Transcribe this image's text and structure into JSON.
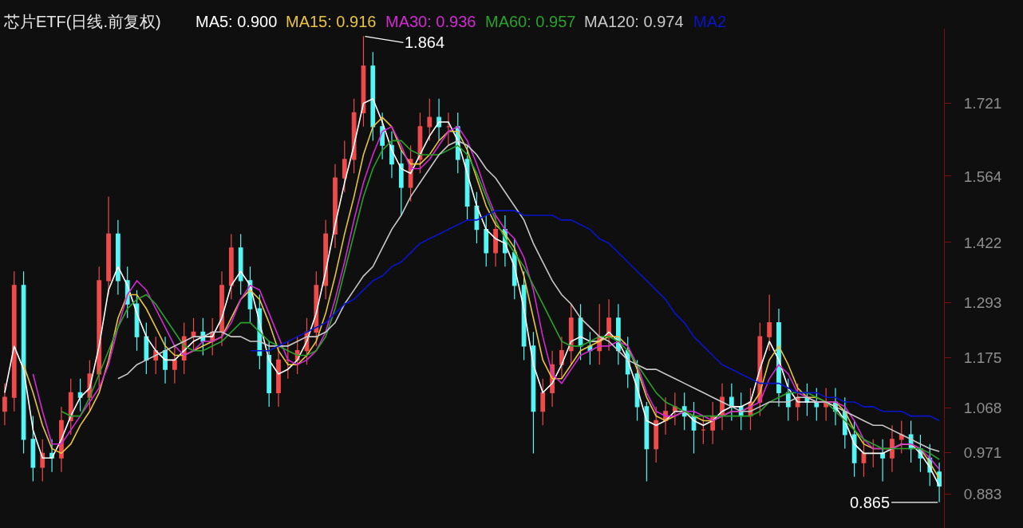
{
  "chart_data": {
    "type": "candlestick",
    "title": "芯片ETF(日线.前复权)",
    "categories": [
      null,
      null,
      null,
      null,
      null,
      null,
      null,
      null,
      null,
      null,
      null,
      null,
      null,
      null,
      null,
      null,
      null,
      null,
      null,
      null,
      null,
      null,
      null,
      null,
      null,
      null,
      null,
      null,
      null,
      null,
      null,
      null,
      null,
      null,
      null,
      null,
      null,
      null,
      null,
      null,
      null,
      null,
      null,
      null,
      null,
      null,
      null,
      null,
      null,
      null,
      null,
      null,
      null,
      null,
      null,
      null,
      null,
      null,
      null,
      null,
      null,
      null,
      null,
      null,
      null,
      null,
      null,
      null,
      null,
      null,
      null,
      null,
      null,
      null,
      null,
      null,
      null,
      null,
      null,
      null,
      null,
      null,
      null,
      null,
      null,
      null,
      null,
      null,
      null,
      null,
      null,
      null,
      null,
      null,
      null,
      null,
      null,
      null,
      null,
      null
    ],
    "ohlc": [
      [
        1.06,
        1.12,
        1.03,
        1.09
      ],
      [
        1.09,
        1.36,
        1.06,
        1.33
      ],
      [
        1.33,
        1.36,
        0.97,
        1.0
      ],
      [
        1.0,
        1.05,
        0.91,
        0.94
      ],
      [
        0.94,
        1.0,
        0.91,
        0.97
      ],
      [
        0.97,
        1.0,
        0.93,
        0.96
      ],
      [
        0.96,
        1.07,
        0.93,
        1.04
      ],
      [
        1.04,
        1.13,
        1.01,
        1.1
      ],
      [
        1.1,
        1.13,
        1.06,
        1.09
      ],
      [
        1.09,
        1.17,
        1.06,
        1.14
      ],
      [
        1.14,
        1.37,
        1.11,
        1.34
      ],
      [
        1.34,
        1.52,
        1.31,
        1.44
      ],
      [
        1.44,
        1.47,
        1.31,
        1.34
      ],
      [
        1.34,
        1.37,
        1.26,
        1.29
      ],
      [
        1.29,
        1.32,
        1.19,
        1.22
      ],
      [
        1.22,
        1.25,
        1.14,
        1.17
      ],
      [
        1.17,
        1.22,
        1.14,
        1.19
      ],
      [
        1.19,
        1.22,
        1.12,
        1.15
      ],
      [
        1.15,
        1.2,
        1.12,
        1.17
      ],
      [
        1.17,
        1.25,
        1.14,
        1.22
      ],
      [
        1.22,
        1.26,
        1.19,
        1.23
      ],
      [
        1.23,
        1.26,
        1.18,
        1.21
      ],
      [
        1.21,
        1.26,
        1.18,
        1.23
      ],
      [
        1.23,
        1.36,
        1.2,
        1.33
      ],
      [
        1.33,
        1.44,
        1.3,
        1.41
      ],
      [
        1.41,
        1.44,
        1.31,
        1.34
      ],
      [
        1.34,
        1.37,
        1.25,
        1.28
      ],
      [
        1.28,
        1.31,
        1.15,
        1.18
      ],
      [
        1.18,
        1.21,
        1.07,
        1.1
      ],
      [
        1.1,
        1.2,
        1.07,
        1.17
      ],
      [
        1.17,
        1.21,
        1.13,
        1.17
      ],
      [
        1.17,
        1.22,
        1.14,
        1.19
      ],
      [
        1.19,
        1.26,
        1.16,
        1.23
      ],
      [
        1.23,
        1.36,
        1.2,
        1.33
      ],
      [
        1.33,
        1.47,
        1.3,
        1.44
      ],
      [
        1.44,
        1.59,
        1.41,
        1.56
      ],
      [
        1.56,
        1.64,
        1.53,
        1.6
      ],
      [
        1.6,
        1.73,
        1.57,
        1.7
      ],
      [
        1.7,
        1.864,
        1.67,
        1.8
      ],
      [
        1.8,
        1.83,
        1.64,
        1.67
      ],
      [
        1.67,
        1.7,
        1.6,
        1.63
      ],
      [
        1.63,
        1.66,
        1.56,
        1.59
      ],
      [
        1.59,
        1.62,
        1.48,
        1.54
      ],
      [
        1.54,
        1.63,
        1.51,
        1.6
      ],
      [
        1.6,
        1.7,
        1.57,
        1.67
      ],
      [
        1.67,
        1.73,
        1.64,
        1.69
      ],
      [
        1.69,
        1.73,
        1.64,
        1.67
      ],
      [
        1.67,
        1.7,
        1.63,
        1.67
      ],
      [
        1.67,
        1.7,
        1.57,
        1.6
      ],
      [
        1.6,
        1.63,
        1.47,
        1.5
      ],
      [
        1.5,
        1.53,
        1.42,
        1.45
      ],
      [
        1.45,
        1.48,
        1.37,
        1.4
      ],
      [
        1.4,
        1.48,
        1.37,
        1.45
      ],
      [
        1.45,
        1.48,
        1.37,
        1.4
      ],
      [
        1.4,
        1.43,
        1.3,
        1.33
      ],
      [
        1.33,
        1.36,
        1.17,
        1.2
      ],
      [
        1.2,
        1.23,
        0.97,
        1.06
      ],
      [
        1.06,
        1.13,
        1.03,
        1.1
      ],
      [
        1.1,
        1.19,
        1.07,
        1.16
      ],
      [
        1.16,
        1.22,
        1.13,
        1.19
      ],
      [
        1.19,
        1.29,
        1.16,
        1.26
      ],
      [
        1.26,
        1.29,
        1.17,
        1.2
      ],
      [
        1.2,
        1.23,
        1.16,
        1.19
      ],
      [
        1.19,
        1.29,
        1.16,
        1.22
      ],
      [
        1.22,
        1.3,
        1.19,
        1.26
      ],
      [
        1.26,
        1.29,
        1.16,
        1.19
      ],
      [
        1.19,
        1.22,
        1.11,
        1.14
      ],
      [
        1.14,
        1.17,
        1.04,
        1.07
      ],
      [
        1.07,
        1.08,
        0.91,
        0.98
      ],
      [
        0.98,
        1.07,
        0.95,
        1.04
      ],
      [
        1.04,
        1.09,
        1.01,
        1.06
      ],
      [
        1.06,
        1.1,
        1.03,
        1.07
      ],
      [
        1.07,
        1.1,
        1.02,
        1.05
      ],
      [
        1.05,
        1.08,
        0.97,
        1.02
      ],
      [
        1.02,
        1.05,
        0.99,
        1.02
      ],
      [
        1.02,
        1.08,
        0.99,
        1.05
      ],
      [
        1.05,
        1.12,
        1.02,
        1.09
      ],
      [
        1.09,
        1.12,
        1.04,
        1.07
      ],
      [
        1.07,
        1.1,
        1.02,
        1.05
      ],
      [
        1.05,
        1.11,
        1.02,
        1.08
      ],
      [
        1.08,
        1.25,
        1.05,
        1.22
      ],
      [
        1.22,
        1.31,
        1.19,
        1.25
      ],
      [
        1.25,
        1.28,
        1.07,
        1.1
      ],
      [
        1.1,
        1.13,
        1.04,
        1.07
      ],
      [
        1.07,
        1.12,
        1.04,
        1.09
      ],
      [
        1.09,
        1.12,
        1.05,
        1.08
      ],
      [
        1.08,
        1.11,
        1.04,
        1.07
      ],
      [
        1.07,
        1.11,
        1.04,
        1.08
      ],
      [
        1.08,
        1.11,
        1.03,
        1.06
      ],
      [
        1.06,
        1.09,
        0.98,
        1.01
      ],
      [
        1.01,
        1.04,
        0.92,
        0.95
      ],
      [
        0.95,
        1.0,
        0.92,
        0.97
      ],
      [
        0.97,
        1.0,
        0.94,
        0.97
      ],
      [
        0.97,
        1.0,
        0.91,
        0.96
      ],
      [
        0.96,
        1.03,
        0.93,
        1.0
      ],
      [
        1.0,
        1.04,
        0.97,
        1.01
      ],
      [
        1.01,
        1.04,
        0.95,
        0.98
      ],
      [
        0.98,
        1.01,
        0.93,
        0.96
      ],
      [
        0.96,
        0.99,
        0.9,
        0.93
      ],
      [
        0.93,
        0.95,
        0.865,
        0.9
      ]
    ],
    "colors": [
      "#f04a4a",
      "#f04a4a",
      "#54f6f6",
      "#54f6f6",
      "#f04a4a",
      "#54f6f6",
      "#f04a4a",
      "#f04a4a",
      "#54f6f6",
      "#f04a4a",
      "#f04a4a",
      "#f04a4a",
      "#54f6f6",
      "#54f6f6",
      "#54f6f6",
      "#54f6f6",
      "#f04a4a",
      "#54f6f6",
      "#f04a4a",
      "#f04a4a",
      "#f04a4a",
      "#54f6f6",
      "#f04a4a",
      "#f04a4a",
      "#f04a4a",
      "#54f6f6",
      "#54f6f6",
      "#54f6f6",
      "#54f6f6",
      "#f04a4a",
      "#f04a4a",
      "#f04a4a",
      "#f04a4a",
      "#f04a4a",
      "#f04a4a",
      "#f04a4a",
      "#f04a4a",
      "#f04a4a",
      "#f04a4a",
      "#54f6f6",
      "#54f6f6",
      "#54f6f6",
      "#54f6f6",
      "#f04a4a",
      "#f04a4a",
      "#f04a4a",
      "#54f6f6",
      "#f04a4a",
      "#54f6f6",
      "#54f6f6",
      "#54f6f6",
      "#54f6f6",
      "#f04a4a",
      "#54f6f6",
      "#54f6f6",
      "#54f6f6",
      "#54f6f6",
      "#f04a4a",
      "#f04a4a",
      "#f04a4a",
      "#f04a4a",
      "#54f6f6",
      "#54f6f6",
      "#f04a4a",
      "#f04a4a",
      "#54f6f6",
      "#54f6f6",
      "#54f6f6",
      "#54f6f6",
      "#f04a4a",
      "#f04a4a",
      "#f04a4a",
      "#54f6f6",
      "#54f6f6",
      "#f04a4a",
      "#f04a4a",
      "#f04a4a",
      "#54f6f6",
      "#54f6f6",
      "#f04a4a",
      "#f04a4a",
      "#f04a4a",
      "#54f6f6",
      "#54f6f6",
      "#f04a4a",
      "#54f6f6",
      "#54f6f6",
      "#f04a4a",
      "#54f6f6",
      "#54f6f6",
      "#54f6f6",
      "#f04a4a",
      "#f04a4a",
      "#54f6f6",
      "#f04a4a",
      "#f04a4a",
      "#54f6f6",
      "#54f6f6",
      "#54f6f6",
      "#54f6f6"
    ],
    "series": [
      {
        "name": "MA5: 0.900",
        "type": "line",
        "color": "#ffffff",
        "values": [
          1.1,
          1.2,
          1.15,
          1.02,
          0.96,
          0.96,
          1.0,
          1.05,
          1.09,
          1.11,
          1.2,
          1.32,
          1.37,
          1.33,
          1.27,
          1.22,
          1.19,
          1.17,
          1.17,
          1.19,
          1.21,
          1.22,
          1.22,
          1.26,
          1.33,
          1.36,
          1.33,
          1.25,
          1.17,
          1.14,
          1.15,
          1.17,
          1.21,
          1.27,
          1.36,
          1.46,
          1.55,
          1.63,
          1.72,
          1.73,
          1.68,
          1.62,
          1.58,
          1.57,
          1.61,
          1.65,
          1.68,
          1.68,
          1.64,
          1.57,
          1.5,
          1.45,
          1.43,
          1.42,
          1.37,
          1.28,
          1.16,
          1.1,
          1.12,
          1.16,
          1.21,
          1.22,
          1.21,
          1.21,
          1.23,
          1.21,
          1.17,
          1.11,
          1.04,
          1.03,
          1.04,
          1.06,
          1.06,
          1.04,
          1.03,
          1.04,
          1.06,
          1.07,
          1.07,
          1.08,
          1.15,
          1.21,
          1.17,
          1.11,
          1.08,
          1.08,
          1.08,
          1.08,
          1.07,
          1.04,
          0.99,
          0.97,
          0.97,
          0.97,
          0.98,
          0.99,
          0.99,
          0.97,
          0.94,
          0.9
        ]
      },
      {
        "name": "MA15: 0.916",
        "type": "line",
        "color": "#e8c440",
        "values": [
          null,
          null,
          1.16,
          1.1,
          1.03,
          0.98,
          0.97,
          0.99,
          1.03,
          1.06,
          1.1,
          1.17,
          1.26,
          1.31,
          1.31,
          1.28,
          1.24,
          1.2,
          1.18,
          1.18,
          1.19,
          1.2,
          1.21,
          1.22,
          1.26,
          1.3,
          1.32,
          1.3,
          1.25,
          1.19,
          1.16,
          1.16,
          1.18,
          1.21,
          1.27,
          1.35,
          1.44,
          1.52,
          1.61,
          1.67,
          1.69,
          1.67,
          1.62,
          1.59,
          1.59,
          1.61,
          1.64,
          1.66,
          1.66,
          1.62,
          1.56,
          1.5,
          1.46,
          1.44,
          1.41,
          1.35,
          1.26,
          1.17,
          1.13,
          1.13,
          1.16,
          1.19,
          1.2,
          1.21,
          1.22,
          1.22,
          1.2,
          1.15,
          1.09,
          1.05,
          1.04,
          1.05,
          1.06,
          1.05,
          1.04,
          1.04,
          1.05,
          1.06,
          1.06,
          1.07,
          1.1,
          1.17,
          1.2,
          1.16,
          1.11,
          1.09,
          1.09,
          1.08,
          1.08,
          1.06,
          1.02,
          0.99,
          0.98,
          0.98,
          0.98,
          0.99,
          0.99,
          0.98,
          0.95,
          0.916
        ]
      },
      {
        "name": "MA30: 0.936",
        "type": "line",
        "color": "#d22ad2",
        "values": [
          null,
          null,
          null,
          1.14,
          1.06,
          0.99,
          0.99,
          1.02,
          1.05,
          1.08,
          1.11,
          1.16,
          1.24,
          1.31,
          1.34,
          1.32,
          1.28,
          1.24,
          1.2,
          1.18,
          1.19,
          1.21,
          1.21,
          1.22,
          1.25,
          1.3,
          1.33,
          1.32,
          1.27,
          1.22,
          1.17,
          1.16,
          1.17,
          1.19,
          1.23,
          1.3,
          1.38,
          1.47,
          1.55,
          1.61,
          1.66,
          1.67,
          1.63,
          1.58,
          1.58,
          1.6,
          1.63,
          1.66,
          1.67,
          1.64,
          1.59,
          1.53,
          1.48,
          1.45,
          1.43,
          1.39,
          1.32,
          1.22,
          1.14,
          1.12,
          1.15,
          1.18,
          1.19,
          1.2,
          1.2,
          1.21,
          1.2,
          1.16,
          1.1,
          1.06,
          1.05,
          1.05,
          1.06,
          1.06,
          1.05,
          1.04,
          1.05,
          1.06,
          1.06,
          1.07,
          1.08,
          1.13,
          1.16,
          1.14,
          1.1,
          1.09,
          1.08,
          1.08,
          1.08,
          1.07,
          1.04,
          1.0,
          0.98,
          0.98,
          0.98,
          0.99,
          0.99,
          0.98,
          0.96,
          0.936
        ]
      },
      {
        "name": "MA60: 0.957",
        "type": "line",
        "color": "#2ca02c",
        "values": [
          null,
          null,
          null,
          null,
          null,
          null,
          1.06,
          1.05,
          1.05,
          1.09,
          1.14,
          1.19,
          1.24,
          1.28,
          1.3,
          1.31,
          1.29,
          1.26,
          1.23,
          1.2,
          1.19,
          1.19,
          1.2,
          1.21,
          1.23,
          1.25,
          1.25,
          1.23,
          1.21,
          1.2,
          1.19,
          1.18,
          1.18,
          1.19,
          1.22,
          1.28,
          1.36,
          1.44,
          1.52,
          1.58,
          1.62,
          1.64,
          1.64,
          1.62,
          1.61,
          1.61,
          1.61,
          1.62,
          1.63,
          1.61,
          1.57,
          1.52,
          1.47,
          1.43,
          1.4,
          1.37,
          1.33,
          1.29,
          1.25,
          1.21,
          1.2,
          1.2,
          1.21,
          1.22,
          1.22,
          1.21,
          1.19,
          1.16,
          1.13,
          1.1,
          1.08,
          1.07,
          1.06,
          1.05,
          1.05,
          1.05,
          1.05,
          1.05,
          1.05,
          1.05,
          1.06,
          1.08,
          1.09,
          1.1,
          1.1,
          1.1,
          1.09,
          1.08,
          1.06,
          1.04,
          1.02,
          1.0,
          0.99,
          0.98,
          0.98,
          0.98,
          0.98,
          0.98,
          0.97,
          0.957
        ]
      },
      {
        "name": "MA120: 0.974",
        "type": "line",
        "color": "#c8c8c8",
        "values": [
          null,
          null,
          null,
          null,
          null,
          null,
          null,
          null,
          null,
          null,
          null,
          null,
          1.13,
          1.14,
          1.16,
          1.17,
          1.18,
          1.19,
          1.2,
          1.21,
          1.22,
          1.22,
          1.23,
          1.23,
          1.22,
          1.22,
          1.21,
          1.21,
          1.2,
          1.2,
          1.2,
          1.21,
          1.22,
          1.22,
          1.23,
          1.25,
          1.29,
          1.32,
          1.35,
          1.37,
          1.41,
          1.45,
          1.48,
          1.52,
          1.55,
          1.58,
          1.61,
          1.63,
          1.64,
          1.63,
          1.61,
          1.58,
          1.56,
          1.53,
          1.5,
          1.47,
          1.42,
          1.38,
          1.34,
          1.31,
          1.29,
          1.26,
          1.24,
          1.22,
          1.21,
          1.19,
          1.17,
          1.16,
          1.15,
          1.15,
          1.14,
          1.13,
          1.12,
          1.11,
          1.1,
          1.09,
          1.08,
          1.07,
          1.06,
          1.06,
          1.07,
          1.08,
          1.08,
          1.08,
          1.09,
          1.09,
          1.08,
          1.08,
          1.07,
          1.06,
          1.05,
          1.04,
          1.03,
          1.03,
          1.02,
          1.01,
          1.0,
          0.99,
          0.98,
          0.974
        ]
      },
      {
        "name": "MA2",
        "type": "line",
        "color": "#0a14c8",
        "values": [
          null,
          null,
          null,
          null,
          null,
          null,
          null,
          null,
          null,
          null,
          null,
          null,
          null,
          null,
          null,
          null,
          null,
          null,
          null,
          null,
          null,
          null,
          null,
          null,
          null,
          null,
          1.19,
          1.19,
          1.19,
          1.2,
          1.21,
          1.22,
          1.23,
          1.24,
          1.25,
          1.27,
          1.29,
          1.3,
          1.32,
          1.34,
          1.35,
          1.37,
          1.38,
          1.4,
          1.42,
          1.43,
          1.44,
          1.45,
          1.46,
          1.47,
          1.47,
          1.48,
          1.49,
          1.49,
          1.49,
          1.48,
          1.48,
          1.48,
          1.48,
          1.47,
          1.47,
          1.46,
          1.45,
          1.43,
          1.42,
          1.4,
          1.38,
          1.36,
          1.34,
          1.32,
          1.3,
          1.27,
          1.25,
          1.22,
          1.2,
          1.18,
          1.16,
          1.15,
          1.14,
          1.13,
          1.12,
          1.12,
          1.12,
          1.11,
          1.1,
          1.1,
          1.1,
          1.09,
          1.09,
          1.08,
          1.08,
          1.07,
          1.07,
          1.06,
          1.06,
          1.06,
          1.05,
          1.05,
          1.05,
          1.04
        ]
      }
    ],
    "ylim": [
      0.81,
      1.88
    ],
    "yticks": [
      1.721,
      1.564,
      1.422,
      1.293,
      1.175,
      1.068,
      0.971,
      0.883
    ],
    "tick_labels": "y",
    "annotations": [
      "1.864",
      "0.865"
    ],
    "legend": "top"
  }
}
